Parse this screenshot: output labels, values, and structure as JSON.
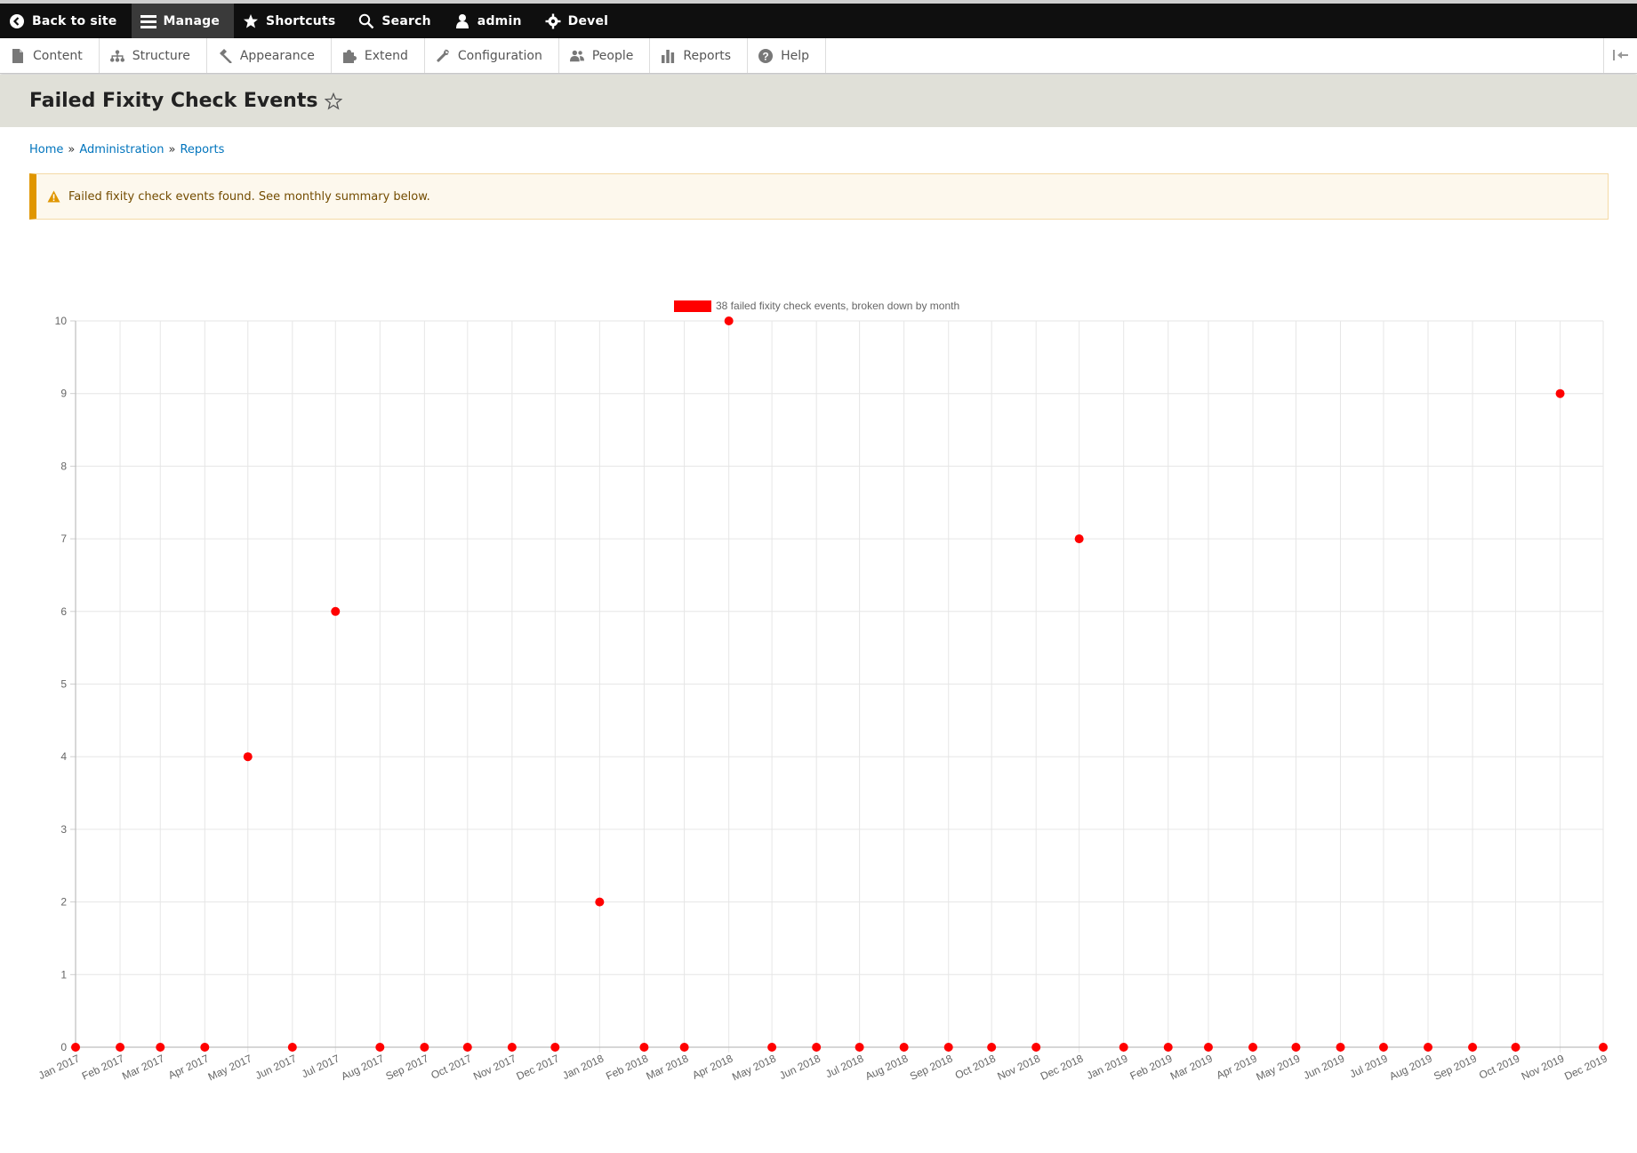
{
  "toolbar": {
    "back_to_site": "Back to site",
    "manage": "Manage",
    "shortcuts": "Shortcuts",
    "search": "Search",
    "user": "admin",
    "devel": "Devel"
  },
  "tray": {
    "items": [
      "Content",
      "Structure",
      "Appearance",
      "Extend",
      "Configuration",
      "People",
      "Reports",
      "Help"
    ]
  },
  "page": {
    "title": "Failed Fixity Check Events"
  },
  "breadcrumb": {
    "home": "Home",
    "administration": "Administration",
    "reports": "Reports",
    "separator": "»"
  },
  "message": {
    "text": "Failed fixity check events found. See monthly summary below."
  },
  "colors": {
    "series": "#ff0000",
    "warning_border": "#e09600",
    "link": "#0074bd"
  },
  "chart_data": {
    "type": "scatter",
    "title": "",
    "xlabel": "",
    "ylabel": "",
    "ylim": [
      0,
      10
    ],
    "yticks": [
      0,
      1,
      2,
      3,
      4,
      5,
      6,
      7,
      8,
      9,
      10
    ],
    "grid": true,
    "legend_position": "top",
    "series": [
      {
        "name": "38 failed fixity check events, broken down by month",
        "color": "#ff0000",
        "points": [
          {
            "x": "2017-01-01",
            "y": 0
          },
          {
            "x": "2017-02-01",
            "y": 0
          },
          {
            "x": "2017-03-01",
            "y": 0
          },
          {
            "x": "2017-04-01",
            "y": 0
          },
          {
            "x": "2017-05-01",
            "y": 4
          },
          {
            "x": "2017-06-01",
            "y": 0
          },
          {
            "x": "2017-07-01",
            "y": 6
          },
          {
            "x": "2017-08-01",
            "y": 0
          },
          {
            "x": "2017-09-01",
            "y": 0
          },
          {
            "x": "2017-10-01",
            "y": 0
          },
          {
            "x": "2017-11-01",
            "y": 0
          },
          {
            "x": "2017-12-01",
            "y": 0
          },
          {
            "x": "2018-01-01",
            "y": 2
          },
          {
            "x": "2018-02-01",
            "y": 0
          },
          {
            "x": "2018-03-01",
            "y": 0
          },
          {
            "x": "2018-04-01",
            "y": 10
          },
          {
            "x": "2018-05-01",
            "y": 0
          },
          {
            "x": "2018-06-01",
            "y": 0
          },
          {
            "x": "2018-07-01",
            "y": 0
          },
          {
            "x": "2018-08-01",
            "y": 0
          },
          {
            "x": "2018-09-01",
            "y": 0
          },
          {
            "x": "2018-10-01",
            "y": 0
          },
          {
            "x": "2018-11-01",
            "y": 0
          },
          {
            "x": "2018-12-01",
            "y": 7
          },
          {
            "x": "2019-01-01",
            "y": 0
          },
          {
            "x": "2019-02-01",
            "y": 0
          },
          {
            "x": "2019-03-01",
            "y": 0
          },
          {
            "x": "2019-04-01",
            "y": 0
          },
          {
            "x": "2019-05-01",
            "y": 0
          },
          {
            "x": "2019-06-01",
            "y": 0
          },
          {
            "x": "2019-07-01",
            "y": 0
          },
          {
            "x": "2019-08-01",
            "y": 0
          },
          {
            "x": "2019-09-01",
            "y": 0
          },
          {
            "x": "2019-10-01",
            "y": 0
          },
          {
            "x": "2019-11-01",
            "y": 9
          },
          {
            "x": "2019-12-01",
            "y": 0
          }
        ]
      }
    ],
    "x_tick_labels": [
      "Jan 2017",
      "Feb 2017",
      "Mar 2017",
      "Apr 2017",
      "May 2017",
      "Jun 2017",
      "Jul 2017",
      "Aug 2017",
      "Sep 2017",
      "Oct 2017",
      "Nov 2017",
      "Dec 2017",
      "Jan 2018",
      "Feb 2018",
      "Mar 2018",
      "Apr 2018",
      "May 2018",
      "Jun 2018",
      "Jul 2018",
      "Aug 2018",
      "Sep 2018",
      "Oct 2018",
      "Nov 2018",
      "Dec 2018",
      "Jan 2019",
      "Feb 2019",
      "Mar 2019",
      "Apr 2019",
      "May 2019",
      "Jun 2019",
      "Jul 2019",
      "Aug 2019",
      "Sep 2019",
      "Oct 2019",
      "Nov 2019",
      "Dec 2019"
    ]
  }
}
